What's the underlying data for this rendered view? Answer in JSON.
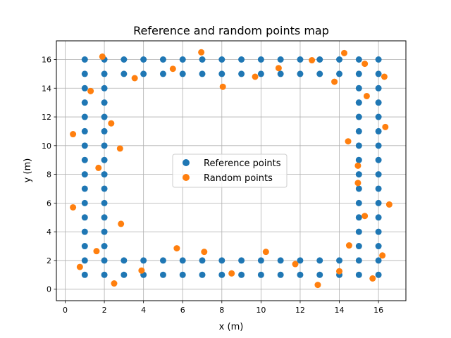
{
  "chart_data": {
    "type": "scatter",
    "title": "Reference and random points map",
    "xlabel": "x (m)",
    "ylabel": "y (m)",
    "xlim": [
      -0.45,
      17.4
    ],
    "ylim": [
      -0.8,
      17.3
    ],
    "xticks": [
      0,
      2,
      4,
      6,
      8,
      10,
      12,
      14,
      16
    ],
    "yticks": [
      0,
      2,
      4,
      6,
      8,
      10,
      12,
      14,
      16
    ],
    "grid": true,
    "legend_position": "center",
    "series": [
      {
        "name": "Reference points",
        "color": "#1f77b4",
        "points": [
          [
            1,
            1
          ],
          [
            2,
            1
          ],
          [
            3,
            1
          ],
          [
            4,
            1
          ],
          [
            5,
            1
          ],
          [
            6,
            1
          ],
          [
            7,
            1
          ],
          [
            8,
            1
          ],
          [
            9,
            1
          ],
          [
            10,
            1
          ],
          [
            11,
            1
          ],
          [
            12,
            1
          ],
          [
            13,
            1
          ],
          [
            14,
            1
          ],
          [
            15,
            1
          ],
          [
            16,
            1
          ],
          [
            1,
            2
          ],
          [
            2,
            2
          ],
          [
            3,
            2
          ],
          [
            4,
            2
          ],
          [
            5,
            2
          ],
          [
            6,
            2
          ],
          [
            7,
            2
          ],
          [
            8,
            2
          ],
          [
            9,
            2
          ],
          [
            10,
            2
          ],
          [
            11,
            2
          ],
          [
            12,
            2
          ],
          [
            13,
            2
          ],
          [
            14,
            2
          ],
          [
            15,
            2
          ],
          [
            16,
            2
          ],
          [
            1,
            15
          ],
          [
            2,
            15
          ],
          [
            3,
            15
          ],
          [
            4,
            15
          ],
          [
            5,
            15
          ],
          [
            6,
            15
          ],
          [
            7,
            15
          ],
          [
            8,
            15
          ],
          [
            9,
            15
          ],
          [
            10,
            15
          ],
          [
            11,
            15
          ],
          [
            12,
            15
          ],
          [
            13,
            15
          ],
          [
            14,
            15
          ],
          [
            15,
            15
          ],
          [
            16,
            15
          ],
          [
            1,
            16
          ],
          [
            2,
            16
          ],
          [
            3,
            16
          ],
          [
            4,
            16
          ],
          [
            5,
            16
          ],
          [
            6,
            16
          ],
          [
            7,
            16
          ],
          [
            8,
            16
          ],
          [
            9,
            16
          ],
          [
            10,
            16
          ],
          [
            11,
            16
          ],
          [
            12,
            16
          ],
          [
            13,
            16
          ],
          [
            14,
            16
          ],
          [
            15,
            16
          ],
          [
            16,
            16
          ],
          [
            1,
            3
          ],
          [
            1,
            4
          ],
          [
            1,
            5
          ],
          [
            1,
            6
          ],
          [
            1,
            7
          ],
          [
            1,
            8
          ],
          [
            1,
            9
          ],
          [
            1,
            10
          ],
          [
            1,
            11
          ],
          [
            1,
            12
          ],
          [
            1,
            13
          ],
          [
            1,
            14
          ],
          [
            2,
            3
          ],
          [
            2,
            4
          ],
          [
            2,
            5
          ],
          [
            2,
            6
          ],
          [
            2,
            7
          ],
          [
            2,
            8
          ],
          [
            2,
            9
          ],
          [
            2,
            10
          ],
          [
            2,
            11
          ],
          [
            2,
            12
          ],
          [
            2,
            13
          ],
          [
            2,
            14
          ],
          [
            15,
            3
          ],
          [
            15,
            4
          ],
          [
            15,
            5
          ],
          [
            15,
            6
          ],
          [
            15,
            7
          ],
          [
            15,
            8
          ],
          [
            15,
            9
          ],
          [
            15,
            10
          ],
          [
            15,
            11
          ],
          [
            15,
            12
          ],
          [
            15,
            13
          ],
          [
            15,
            14
          ],
          [
            16,
            3
          ],
          [
            16,
            4
          ],
          [
            16,
            5
          ],
          [
            16,
            6
          ],
          [
            16,
            7
          ],
          [
            16,
            8
          ],
          [
            16,
            9
          ],
          [
            16,
            10
          ],
          [
            16,
            11
          ],
          [
            16,
            12
          ],
          [
            16,
            13
          ],
          [
            16,
            14
          ]
        ]
      },
      {
        "name": "Random points",
        "color": "#ff7f0e",
        "points": [
          [
            1.9,
            16.2
          ],
          [
            6.95,
            16.5
          ],
          [
            14.25,
            16.45
          ],
          [
            12.6,
            15.95
          ],
          [
            15.3,
            15.7
          ],
          [
            5.5,
            15.35
          ],
          [
            10.9,
            15.4
          ],
          [
            16.3,
            14.8
          ],
          [
            3.55,
            14.7
          ],
          [
            8.05,
            14.1
          ],
          [
            9.7,
            14.8
          ],
          [
            13.75,
            14.45
          ],
          [
            1.3,
            13.8
          ],
          [
            15.4,
            13.45
          ],
          [
            2.35,
            11.55
          ],
          [
            16.35,
            11.3
          ],
          [
            0.4,
            10.8
          ],
          [
            2.8,
            9.8
          ],
          [
            14.45,
            10.3
          ],
          [
            1.7,
            8.45
          ],
          [
            14.95,
            8.6
          ],
          [
            14.95,
            7.4
          ],
          [
            0.4,
            5.7
          ],
          [
            16.55,
            5.9
          ],
          [
            15.3,
            5.1
          ],
          [
            2.85,
            4.55
          ],
          [
            5.7,
            2.85
          ],
          [
            7.1,
            2.6
          ],
          [
            10.25,
            2.6
          ],
          [
            14.5,
            3.05
          ],
          [
            1.6,
            2.65
          ],
          [
            16.2,
            2.35
          ],
          [
            11.75,
            1.75
          ],
          [
            3.9,
            1.3
          ],
          [
            14,
            1.25
          ],
          [
            0.75,
            1.55
          ],
          [
            8.5,
            1.1
          ],
          [
            2.5,
            0.4
          ],
          [
            12.9,
            0.3
          ],
          [
            15.7,
            0.75
          ]
        ]
      }
    ]
  }
}
